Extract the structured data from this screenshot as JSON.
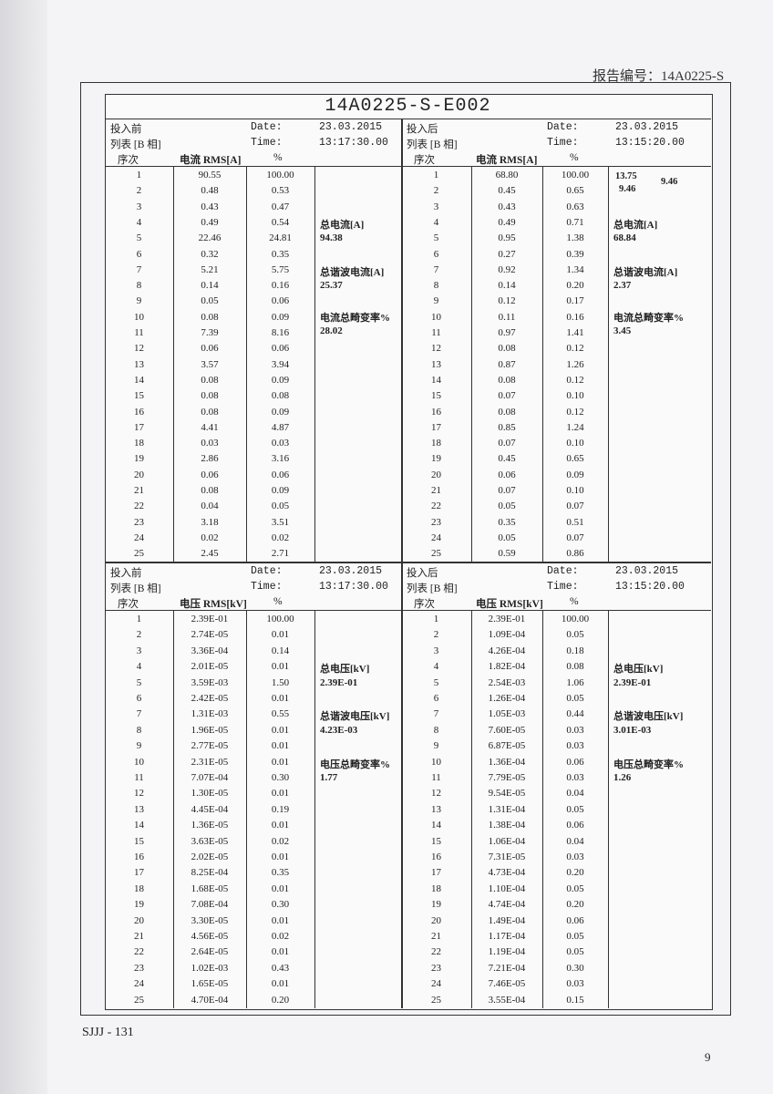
{
  "header": {
    "report_no": "报告编号：14A0225-S"
  },
  "title": "14A0225-S-E002",
  "sections": [
    {
      "panels": [
        {
          "state": "投入前",
          "list": "列表 [B 相]",
          "date_label": "Date:",
          "date": "23.03.2015",
          "time_label": "Time:",
          "time": "13:17:30.00",
          "col_seq": "序次",
          "col_rms": "电流 RMS[A]",
          "col_pct": "%",
          "rows": [
            [
              "1",
              "90.55",
              "100.00"
            ],
            [
              "2",
              "0.48",
              "0.53"
            ],
            [
              "3",
              "0.43",
              "0.47"
            ],
            [
              "4",
              "0.49",
              "0.54"
            ],
            [
              "5",
              "22.46",
              "24.81"
            ],
            [
              "6",
              "0.32",
              "0.35"
            ],
            [
              "7",
              "5.21",
              "5.75"
            ],
            [
              "8",
              "0.14",
              "0.16"
            ],
            [
              "9",
              "0.05",
              "0.06"
            ],
            [
              "10",
              "0.08",
              "0.09"
            ],
            [
              "11",
              "7.39",
              "8.16"
            ],
            [
              "12",
              "0.06",
              "0.06"
            ],
            [
              "13",
              "3.57",
              "3.94"
            ],
            [
              "14",
              "0.08",
              "0.09"
            ],
            [
              "15",
              "0.08",
              "0.08"
            ],
            [
              "16",
              "0.08",
              "0.09"
            ],
            [
              "17",
              "4.41",
              "4.87"
            ],
            [
              "18",
              "0.03",
              "0.03"
            ],
            [
              "19",
              "2.86",
              "3.16"
            ],
            [
              "20",
              "0.06",
              "0.06"
            ],
            [
              "21",
              "0.08",
              "0.09"
            ],
            [
              "22",
              "0.04",
              "0.05"
            ],
            [
              "23",
              "3.18",
              "3.51"
            ],
            [
              "24",
              "0.02",
              "0.02"
            ],
            [
              "25",
              "2.45",
              "2.71"
            ]
          ],
          "notes": [
            {
              "label": "总电流[A]",
              "value": "94.38"
            },
            {
              "label": "总谐波电流[A]",
              "value": "25.37"
            },
            {
              "label": "电流总畸变率%",
              "value": "28.02"
            }
          ],
          "stray": []
        },
        {
          "state": "投入后",
          "list": "列表 [B 相]",
          "date_label": "Date:",
          "date": "23.03.2015",
          "time_label": "Time:",
          "time": "13:15:20.00",
          "col_seq": "序次",
          "col_rms": "电流 RMS[A]",
          "col_pct": "%",
          "rows": [
            [
              "1",
              "68.80",
              "100.00"
            ],
            [
              "2",
              "0.45",
              "0.65"
            ],
            [
              "3",
              "0.43",
              "0.63"
            ],
            [
              "4",
              "0.49",
              "0.71"
            ],
            [
              "5",
              "0.95",
              "1.38"
            ],
            [
              "6",
              "0.27",
              "0.39"
            ],
            [
              "7",
              "0.92",
              "1.34"
            ],
            [
              "8",
              "0.14",
              "0.20"
            ],
            [
              "9",
              "0.12",
              "0.17"
            ],
            [
              "10",
              "0.11",
              "0.16"
            ],
            [
              "11",
              "0.97",
              "1.41"
            ],
            [
              "12",
              "0.08",
              "0.12"
            ],
            [
              "13",
              "0.87",
              "1.26"
            ],
            [
              "14",
              "0.08",
              "0.12"
            ],
            [
              "15",
              "0.07",
              "0.10"
            ],
            [
              "16",
              "0.08",
              "0.12"
            ],
            [
              "17",
              "0.85",
              "1.24"
            ],
            [
              "18",
              "0.07",
              "0.10"
            ],
            [
              "19",
              "0.45",
              "0.65"
            ],
            [
              "20",
              "0.06",
              "0.09"
            ],
            [
              "21",
              "0.07",
              "0.10"
            ],
            [
              "22",
              "0.05",
              "0.07"
            ],
            [
              "23",
              "0.35",
              "0.51"
            ],
            [
              "24",
              "0.05",
              "0.07"
            ],
            [
              "25",
              "0.59",
              "0.86"
            ]
          ],
          "notes": [
            {
              "label": "总电流[A]",
              "value": "68.84"
            },
            {
              "label": "总谐波电流[A]",
              "value": "2.37"
            },
            {
              "label": "电流总畸变率%",
              "value": "3.45"
            }
          ],
          "stray": [
            "13.75",
            "9.46",
            "9.46"
          ]
        }
      ]
    },
    {
      "panels": [
        {
          "state": "投入前",
          "list": "列表 [B 相]",
          "date_label": "Date:",
          "date": "23.03.2015",
          "time_label": "Time:",
          "time": "13:17:30.00",
          "col_seq": "序次",
          "col_rms": "电压 RMS[kV]",
          "col_pct": "%",
          "rows": [
            [
              "1",
              "2.39E-01",
              "100.00"
            ],
            [
              "2",
              "2.74E-05",
              "0.01"
            ],
            [
              "3",
              "3.36E-04",
              "0.14"
            ],
            [
              "4",
              "2.01E-05",
              "0.01"
            ],
            [
              "5",
              "3.59E-03",
              "1.50"
            ],
            [
              "6",
              "2.42E-05",
              "0.01"
            ],
            [
              "7",
              "1.31E-03",
              "0.55"
            ],
            [
              "8",
              "1.96E-05",
              "0.01"
            ],
            [
              "9",
              "2.77E-05",
              "0.01"
            ],
            [
              "10",
              "2.31E-05",
              "0.01"
            ],
            [
              "11",
              "7.07E-04",
              "0.30"
            ],
            [
              "12",
              "1.30E-05",
              "0.01"
            ],
            [
              "13",
              "4.45E-04",
              "0.19"
            ],
            [
              "14",
              "1.36E-05",
              "0.01"
            ],
            [
              "15",
              "3.63E-05",
              "0.02"
            ],
            [
              "16",
              "2.02E-05",
              "0.01"
            ],
            [
              "17",
              "8.25E-04",
              "0.35"
            ],
            [
              "18",
              "1.68E-05",
              "0.01"
            ],
            [
              "19",
              "7.08E-04",
              "0.30"
            ],
            [
              "20",
              "3.30E-05",
              "0.01"
            ],
            [
              "21",
              "4.56E-05",
              "0.02"
            ],
            [
              "22",
              "2.64E-05",
              "0.01"
            ],
            [
              "23",
              "1.02E-03",
              "0.43"
            ],
            [
              "24",
              "1.65E-05",
              "0.01"
            ],
            [
              "25",
              "4.70E-04",
              "0.20"
            ]
          ],
          "notes": [
            {
              "label": "总电压[kV]",
              "value": "2.39E-01"
            },
            {
              "label": "总谐波电压[kV]",
              "value": "4.23E-03"
            },
            {
              "label": "电压总畸变率%",
              "value": "1.77"
            }
          ],
          "stray": []
        },
        {
          "state": "投入后",
          "list": "列表 [B 相]",
          "date_label": "Date:",
          "date": "23.03.2015",
          "time_label": "Time:",
          "time": "13:15:20.00",
          "col_seq": "序次",
          "col_rms": "电压 RMS[kV]",
          "col_pct": "%",
          "rows": [
            [
              "1",
              "2.39E-01",
              "100.00"
            ],
            [
              "2",
              "1.09E-04",
              "0.05"
            ],
            [
              "3",
              "4.26E-04",
              "0.18"
            ],
            [
              "4",
              "1.82E-04",
              "0.08"
            ],
            [
              "5",
              "2.54E-03",
              "1.06"
            ],
            [
              "6",
              "1.26E-04",
              "0.05"
            ],
            [
              "7",
              "1.05E-03",
              "0.44"
            ],
            [
              "8",
              "7.60E-05",
              "0.03"
            ],
            [
              "9",
              "6.87E-05",
              "0.03"
            ],
            [
              "10",
              "1.36E-04",
              "0.06"
            ],
            [
              "11",
              "7.79E-05",
              "0.03"
            ],
            [
              "12",
              "9.54E-05",
              "0.04"
            ],
            [
              "13",
              "1.31E-04",
              "0.05"
            ],
            [
              "14",
              "1.38E-04",
              "0.06"
            ],
            [
              "15",
              "1.06E-04",
              "0.04"
            ],
            [
              "16",
              "7.31E-05",
              "0.03"
            ],
            [
              "17",
              "4.73E-04",
              "0.20"
            ],
            [
              "18",
              "1.10E-04",
              "0.05"
            ],
            [
              "19",
              "4.74E-04",
              "0.20"
            ],
            [
              "20",
              "1.49E-04",
              "0.06"
            ],
            [
              "21",
              "1.17E-04",
              "0.05"
            ],
            [
              "22",
              "1.19E-04",
              "0.05"
            ],
            [
              "23",
              "7.21E-04",
              "0.30"
            ],
            [
              "24",
              "7.46E-05",
              "0.03"
            ],
            [
              "25",
              "3.55E-04",
              "0.15"
            ]
          ],
          "notes": [
            {
              "label": "总电压[kV]",
              "value": "2.39E-01"
            },
            {
              "label": "总谐波电压[kV]",
              "value": "3.01E-03"
            },
            {
              "label": "电压总畸变率%",
              "value": "1.26"
            }
          ],
          "stray": []
        }
      ]
    }
  ],
  "footer": {
    "code": "SJJJ - 131",
    "page": "9"
  }
}
